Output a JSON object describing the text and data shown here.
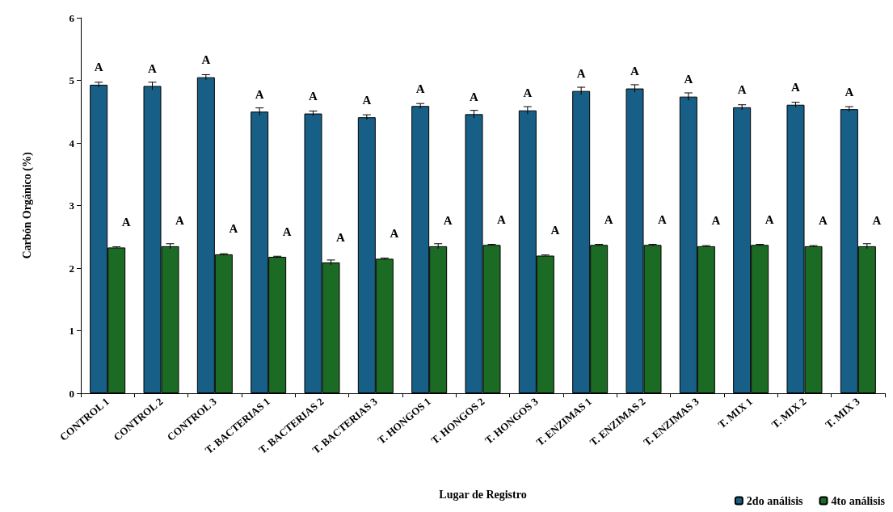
{
  "chart_data": {
    "type": "bar",
    "xlabel": "Lugar de Registro",
    "ylabel": "Carbón Orgánico (%)",
    "categories": [
      "CONTROL 1",
      "CONTROL 2",
      "CONTROL 3",
      "T. BACTERIAS 1",
      "T. BACTERIAS 2",
      "T. BACTERIAS 3",
      "T. HONGOS 1",
      "T. HONGOS 2",
      "T. HONGOS 3",
      "T. ENZIMAS 1",
      "T. ENZIMAS 2",
      "T. ENZIMAS 3",
      "T. MIX 1",
      "T. MIX 2",
      "T. MIX 3"
    ],
    "series": [
      {
        "name": "2do análisis",
        "color": "#175f86",
        "values": [
          4.93,
          4.91,
          5.05,
          4.5,
          4.47,
          4.41,
          4.59,
          4.46,
          4.52,
          4.83,
          4.87,
          4.74,
          4.57,
          4.61,
          4.54
        ],
        "errors": [
          0.04,
          0.06,
          0.04,
          0.06,
          0.04,
          0.04,
          0.04,
          0.06,
          0.06,
          0.06,
          0.06,
          0.06,
          0.04,
          0.04,
          0.04
        ],
        "value_labels": [
          "A",
          "A",
          "A",
          "A",
          "A",
          "A",
          "A",
          "A",
          "A",
          "A",
          "A",
          "A",
          "A",
          "A",
          "A"
        ]
      },
      {
        "name": "4to análisis",
        "color": "#1c6b24",
        "values": [
          2.33,
          2.35,
          2.22,
          2.18,
          2.09,
          2.15,
          2.35,
          2.37,
          2.2,
          2.37,
          2.37,
          2.35,
          2.37,
          2.35,
          2.35
        ],
        "errors": [
          0.01,
          0.04,
          0.01,
          0.01,
          0.04,
          0.01,
          0.04,
          0.01,
          0.01,
          0.01,
          0.01,
          0.01,
          0.01,
          0.01,
          0.04
        ],
        "value_labels": [
          "A",
          "A",
          "A",
          "A",
          "A",
          "A",
          "A",
          "A",
          "A",
          "A",
          "A",
          "A",
          "A",
          "A",
          "A"
        ]
      }
    ],
    "ylim": [
      0,
      6
    ],
    "yticks": [
      0,
      1,
      2,
      3,
      4,
      5,
      6
    ],
    "legend": "bottom right"
  }
}
